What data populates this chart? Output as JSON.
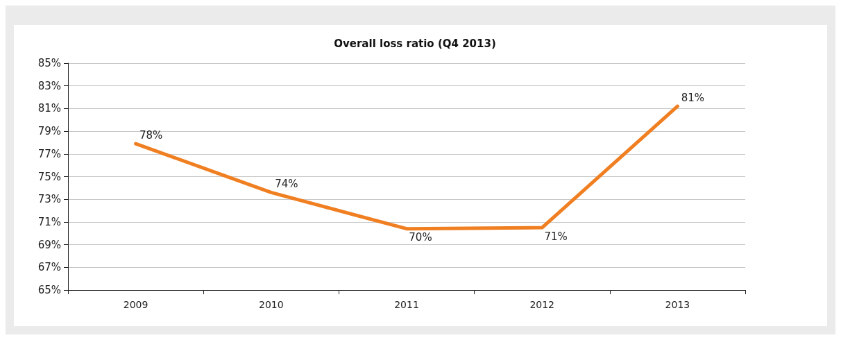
{
  "chart_data": {
    "type": "line",
    "title": "Overall loss ratio (Q4 2013)",
    "categories": [
      "2009",
      "2010",
      "2011",
      "2012",
      "2013"
    ],
    "series": [
      {
        "color": "#f07f22",
        "values": [
          77.9,
          73.6,
          70.4,
          70.5,
          81.2
        ],
        "value_labels": [
          "78%",
          "74%",
          "70%",
          "71%",
          "81%"
        ]
      }
    ],
    "ylim": [
      65,
      85
    ],
    "yticks": [
      {
        "value": 65,
        "label": "65%"
      },
      {
        "value": 67,
        "label": "67%"
      },
      {
        "value": 69,
        "label": "69%"
      },
      {
        "value": 71,
        "label": "71%"
      },
      {
        "value": 73,
        "label": "73%"
      },
      {
        "value": 75,
        "label": "75%"
      },
      {
        "value": 77,
        "label": "77%"
      },
      {
        "value": 79,
        "label": "79%"
      },
      {
        "value": 81,
        "label": "81%"
      },
      {
        "value": 83,
        "label": "83%"
      },
      {
        "value": 85,
        "label": "85%"
      }
    ],
    "grid": "y",
    "marker": "none",
    "line_style": "solid"
  }
}
